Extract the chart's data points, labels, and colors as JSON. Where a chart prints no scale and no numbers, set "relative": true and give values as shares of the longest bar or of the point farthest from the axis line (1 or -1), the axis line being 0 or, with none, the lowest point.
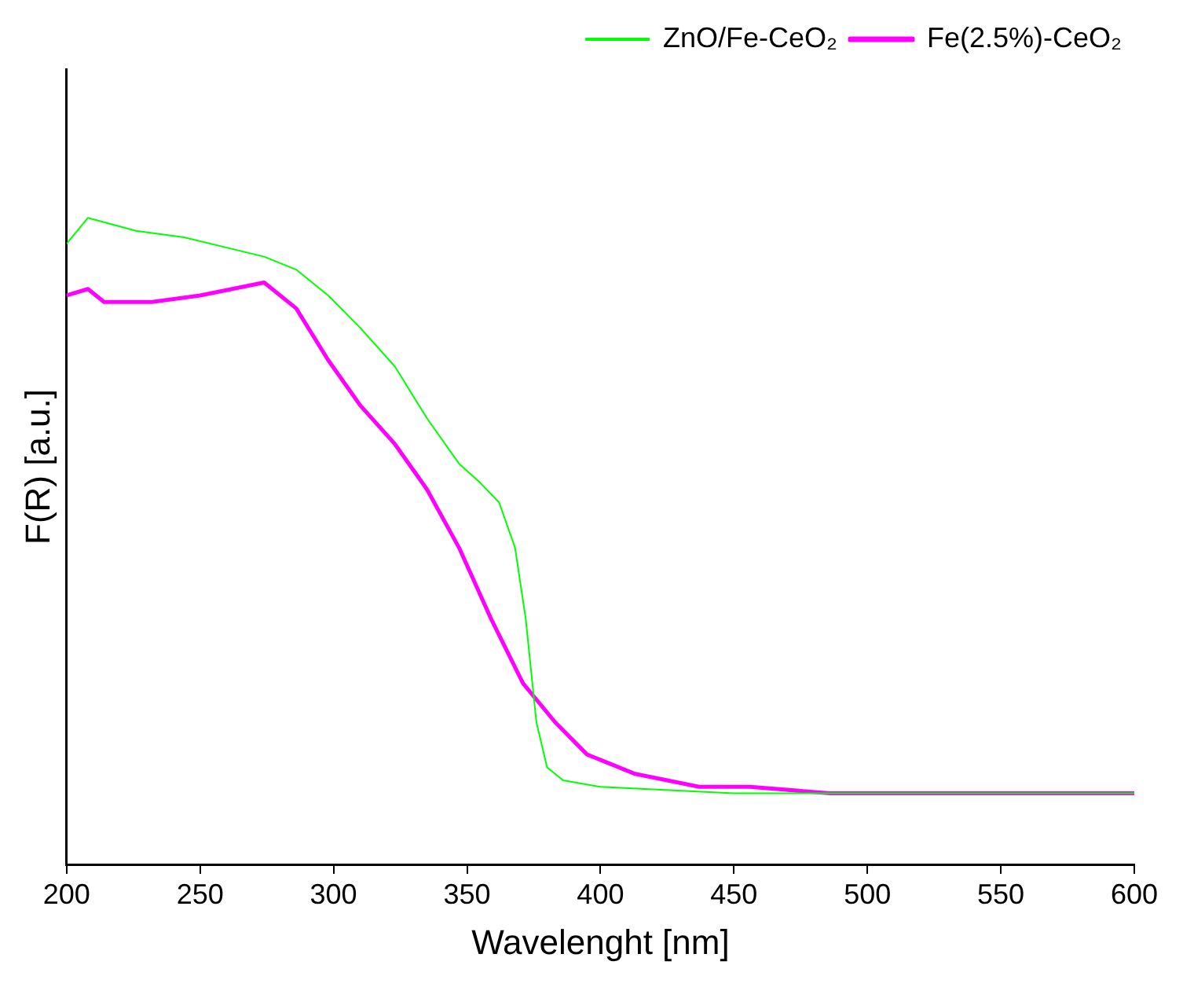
{
  "chart_data": {
    "type": "line",
    "xlabel": "Wavelenght [nm]",
    "ylabel": "F(R) [a.u.]",
    "relative": true,
    "xlim": [
      200,
      600
    ],
    "xticks": [
      200,
      250,
      300,
      350,
      400,
      450,
      500,
      550,
      600
    ],
    "grid": false,
    "legend": "top right",
    "marker": "none",
    "line_style": "solid",
    "series": [
      {
        "name": "ZnO/Fe-CeO₂",
        "color": "#00ff00",
        "x": [
          200,
          208,
          226,
          244,
          274,
          286,
          298,
          310,
          323,
          335,
          347,
          355,
          362,
          368,
          372,
          376,
          380,
          386,
          400,
          450,
          500,
          600
        ],
        "values": [
          0.96,
          1.0,
          0.98,
          0.97,
          0.94,
          0.92,
          0.88,
          0.83,
          0.77,
          0.69,
          0.62,
          0.59,
          0.56,
          0.49,
          0.38,
          0.22,
          0.15,
          0.13,
          0.12,
          0.11,
          0.11,
          0.11
        ]
      },
      {
        "name": "Fe(2.5%)-CeO₂",
        "color": "#ff00ff",
        "x": [
          200,
          208,
          214,
          232,
          250,
          274,
          286,
          298,
          310,
          323,
          335,
          347,
          359,
          371,
          383,
          395,
          413,
          437,
          456,
          486,
          600
        ],
        "values": [
          0.88,
          0.89,
          0.87,
          0.87,
          0.88,
          0.9,
          0.86,
          0.78,
          0.71,
          0.65,
          0.58,
          0.49,
          0.38,
          0.28,
          0.22,
          0.17,
          0.14,
          0.12,
          0.12,
          0.11,
          0.11
        ]
      }
    ]
  }
}
